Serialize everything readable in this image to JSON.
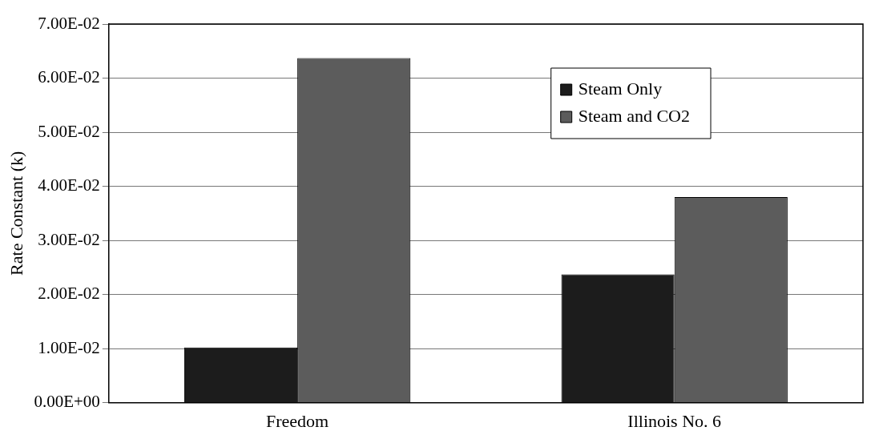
{
  "chart_data": {
    "type": "bar",
    "ylabel": "Rate Constant (k)",
    "categories": [
      "Freedom",
      "Illinois No. 6"
    ],
    "series": [
      {
        "name": "Steam Only",
        "color": "#1c1c1c",
        "values": [
          0.0102,
          0.0237
        ]
      },
      {
        "name": "Steam and CO2",
        "color": "#5c5c5c",
        "values": [
          0.0637,
          0.038
        ]
      }
    ],
    "ylim": [
      0,
      0.07
    ],
    "yticks": [
      {
        "value": 0,
        "label": "0.00E+00"
      },
      {
        "value": 0.01,
        "label": "1.00E-02"
      },
      {
        "value": 0.02,
        "label": "2.00E-02"
      },
      {
        "value": 0.03,
        "label": "3.00E-02"
      },
      {
        "value": 0.04,
        "label": "4.00E-02"
      },
      {
        "value": 0.05,
        "label": "5.00E-02"
      },
      {
        "value": 0.06,
        "label": "6.00E-02"
      },
      {
        "value": 0.07,
        "label": "7.00E-02"
      }
    ],
    "grid": "y",
    "legend": "top right"
  }
}
